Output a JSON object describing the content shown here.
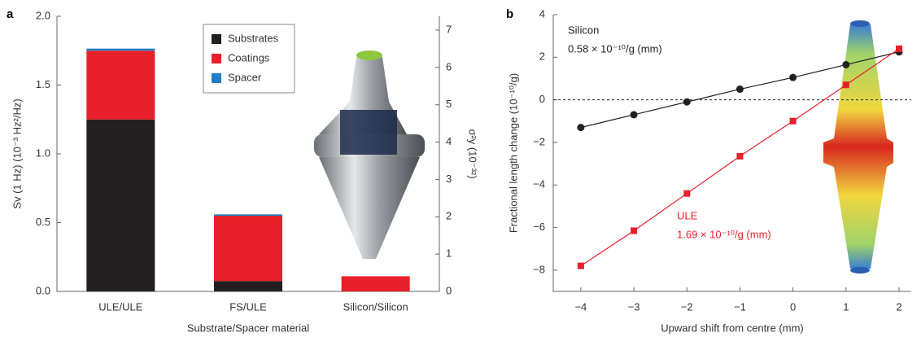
{
  "chart_data": [
    {
      "type": "bar",
      "stacked": true,
      "panel_label": "a",
      "xlabel": "Substrate/Spacer material",
      "ylabel": "Sv (1 Hz) (10⁻³ Hz²/Hz)",
      "y2label": "σ²y (10⁻³²)",
      "categories": [
        "ULE/ULE",
        "FS/ULE",
        "Silicon/Silicon"
      ],
      "series": [
        {
          "name": "Substrates",
          "color": "#231f20",
          "values": [
            1.25,
            0.075,
            0
          ]
        },
        {
          "name": "Coatings",
          "color": "#e8202a",
          "values": [
            0.5,
            0.475,
            0.11
          ]
        },
        {
          "name": "Spacer",
          "color": "#1f7fc4",
          "values": [
            0.015,
            0.01,
            0
          ]
        }
      ],
      "ylim": [
        0,
        2.0
      ],
      "yticks": [
        {
          "value": 0,
          "label": "0.0"
        },
        0.5,
        {
          "value": 1,
          "label": "1.0"
        },
        1.5,
        {
          "value": 2,
          "label": "2.0"
        }
      ],
      "y2lim": [
        0,
        7.37
      ],
      "y2ticks": [
        0,
        1,
        2,
        3,
        4,
        5,
        6,
        7
      ],
      "legend": "top-center"
    },
    {
      "type": "line",
      "panel_label": "b",
      "xlabel": "Upward shift from centre (mm)",
      "ylabel": "Fractional length change (10⁻¹⁰/g)",
      "x": [
        -4,
        -3,
        -2,
        -1,
        0,
        1,
        2
      ],
      "series": [
        {
          "name": "Silicon",
          "color": "#231f20",
          "marker": "circle",
          "values": [
            -1.3,
            -0.7,
            -0.1,
            0.5,
            1.05,
            1.65,
            2.25
          ]
        },
        {
          "name": "ULE",
          "color": "#e8202a",
          "marker": "square",
          "values": [
            -7.8,
            -6.15,
            -4.4,
            -2.65,
            -1.0,
            0.7,
            2.4
          ]
        }
      ],
      "annotations": [
        "0.58 × 10⁻¹⁰/g (mm)",
        "1.69 × 10⁻¹⁰/g (mm)"
      ],
      "hline": 0,
      "xlim": [
        -4.52,
        2.23
      ],
      "xticks": [
        {
          "value": -4,
          "label": "−4"
        },
        {
          "value": -3,
          "label": "−3"
        },
        {
          "value": -2,
          "label": "−2"
        },
        {
          "value": -1,
          "label": "−1"
        },
        0,
        1,
        2
      ],
      "ylim": [
        -9,
        4
      ],
      "yticks": [
        {
          "value": -8,
          "label": "−8"
        },
        {
          "value": -6,
          "label": "−6"
        },
        {
          "value": -4,
          "label": "−4"
        },
        {
          "value": -2,
          "label": "−2"
        },
        0,
        2,
        4
      ]
    }
  ]
}
